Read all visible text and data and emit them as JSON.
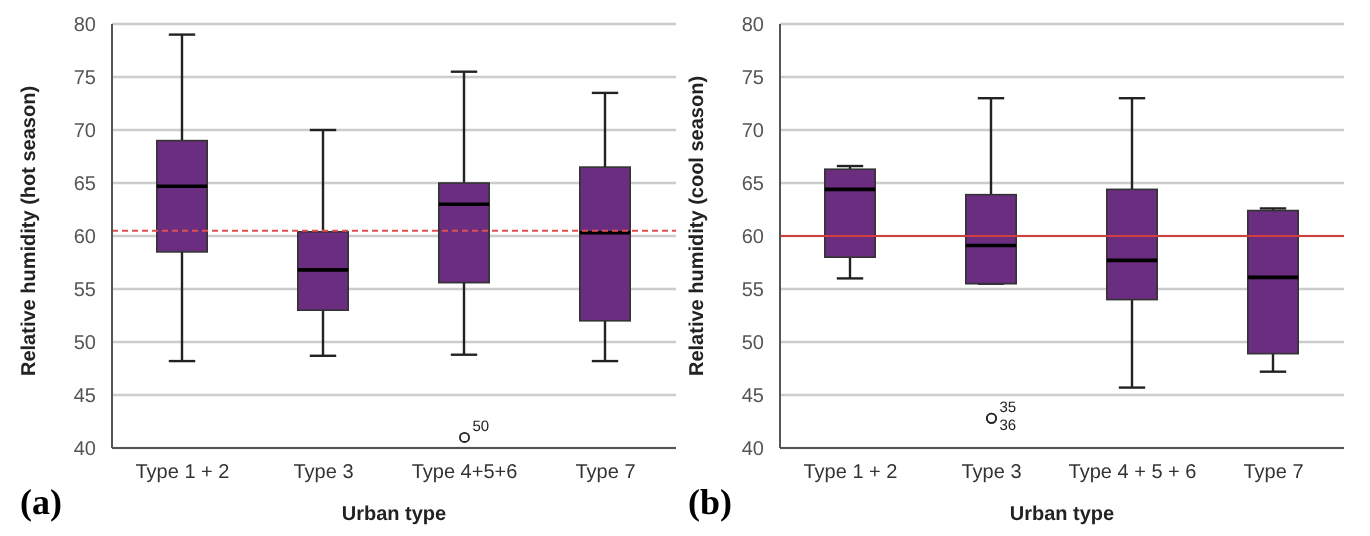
{
  "chart_data": [
    {
      "type": "box",
      "xlabel": "Urban type",
      "ylabel": "Relative humidity (hot season)",
      "categories": [
        "Type 1 + 2",
        "Type 3",
        "Type 4+5+6",
        "Type 7"
      ],
      "color": "#6b2d7f",
      "ylim": [
        40,
        80
      ],
      "yticks": [
        40,
        45,
        50,
        55,
        60,
        65,
        70,
        75,
        80
      ],
      "grid": "y",
      "boxes": [
        {
          "low": 48.2,
          "q1": 58.5,
          "median": 64.7,
          "q3": 69,
          "high": 79
        },
        {
          "low": 48.7,
          "q1": 53,
          "median": 56.8,
          "q3": 60.4,
          "high": 70
        },
        {
          "low": 48.8,
          "q1": 55.6,
          "median": 63,
          "q3": 65,
          "high": 75.5,
          "outliers": [
            41
          ]
        },
        {
          "low": 48.2,
          "q1": 52,
          "median": 60.3,
          "q3": 66.5,
          "high": 73.5
        }
      ],
      "ref_lines": [
        {
          "axis": "y",
          "value": 60.5,
          "color": "#e05050",
          "line_style": "dashed"
        }
      ],
      "annotations": [
        "(a)",
        "50"
      ]
    },
    {
      "type": "box",
      "xlabel": "Urban type",
      "ylabel": "Relative humidity (cool season)",
      "categories": [
        "Type 1 + 2",
        "Type 3",
        "Type 4 + 5 + 6",
        "Type 7"
      ],
      "color": "#6b2d7f",
      "ylim": [
        40,
        80
      ],
      "yticks": [
        40,
        45,
        50,
        55,
        60,
        65,
        70,
        75,
        80
      ],
      "grid": "y",
      "boxes": [
        {
          "low": 56,
          "q1": 58,
          "median": 64.4,
          "q3": 66.3,
          "high": 66.6
        },
        {
          "low": 55.5,
          "q1": 55.5,
          "median": 59.1,
          "q3": 63.9,
          "high": 73,
          "outliers": [
            42.8,
            42.8
          ]
        },
        {
          "low": 45.7,
          "q1": 54,
          "median": 57.7,
          "q3": 64.4,
          "high": 73
        },
        {
          "low": 47.2,
          "q1": 48.9,
          "median": 56.1,
          "q3": 62.4,
          "high": 62.6
        }
      ],
      "ref_lines": [
        {
          "axis": "y",
          "value": 60,
          "color": "#d04040",
          "line_style": "solid"
        }
      ],
      "annotations": [
        "(b)",
        "35",
        "36"
      ]
    }
  ]
}
